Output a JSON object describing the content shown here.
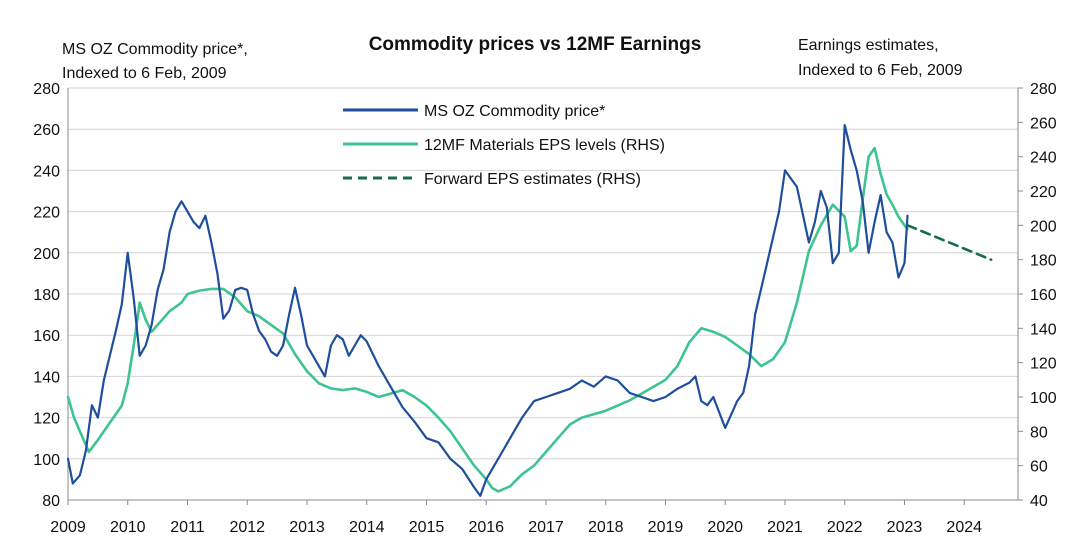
{
  "chart_data": {
    "type": "line",
    "title": "Commodity prices vs 12MF Earnings",
    "left_axis_label": [
      "MS OZ Commodity price*,",
      "Indexed to 6 Feb, 2009"
    ],
    "right_axis_label": [
      "Earnings estimates,",
      "Indexed to 6 Feb, 2009"
    ],
    "x_ticks": [
      "2009",
      "2010",
      "2011",
      "2012",
      "2013",
      "2014",
      "2015",
      "2016",
      "2017",
      "2018",
      "2019",
      "2020",
      "2021",
      "2022",
      "2023",
      "2024"
    ],
    "xlim": [
      2009,
      2024.9
    ],
    "ylim_left": [
      80,
      280
    ],
    "yticks_left": [
      80,
      100,
      120,
      140,
      160,
      180,
      200,
      220,
      240,
      260,
      280
    ],
    "ylim_right": [
      40,
      280
    ],
    "yticks_right": [
      40,
      60,
      80,
      100,
      120,
      140,
      160,
      180,
      200,
      220,
      240,
      260,
      280
    ],
    "legend": {
      "commodity": "MS OZ Commodity price*",
      "eps": "12MF Materials EPS levels (RHS)",
      "forward": "Forward EPS estimates (RHS)"
    },
    "colors": {
      "commodity": "#1f4e9c",
      "eps": "#3ec48f",
      "forward": "#1a6b4c",
      "grid": "#d4d4d4",
      "axis": "#8a8a8a"
    },
    "series": [
      {
        "name": "MS OZ Commodity price*",
        "axis": "left",
        "x": [
          2009.0,
          2009.08,
          2009.2,
          2009.3,
          2009.4,
          2009.5,
          2009.6,
          2009.7,
          2009.8,
          2009.9,
          2010.0,
          2010.1,
          2010.2,
          2010.3,
          2010.4,
          2010.5,
          2010.6,
          2010.7,
          2010.8,
          2010.9,
          2011.0,
          2011.1,
          2011.2,
          2011.3,
          2011.4,
          2011.5,
          2011.6,
          2011.7,
          2011.8,
          2011.9,
          2012.0,
          2012.1,
          2012.2,
          2012.3,
          2012.4,
          2012.5,
          2012.6,
          2012.7,
          2012.8,
          2012.9,
          2013.0,
          2013.1,
          2013.2,
          2013.3,
          2013.4,
          2013.5,
          2013.6,
          2013.7,
          2013.8,
          2013.9,
          2014.0,
          2014.2,
          2014.4,
          2014.6,
          2014.8,
          2015.0,
          2015.2,
          2015.4,
          2015.6,
          2015.8,
          2015.9,
          2016.0,
          2016.1,
          2016.2,
          2016.3,
          2016.4,
          2016.6,
          2016.8,
          2017.0,
          2017.2,
          2017.4,
          2017.6,
          2017.8,
          2018.0,
          2018.2,
          2018.4,
          2018.6,
          2018.8,
          2019.0,
          2019.2,
          2019.4,
          2019.5,
          2019.6,
          2019.7,
          2019.8,
          2020.0,
          2020.2,
          2020.3,
          2020.4,
          2020.5,
          2020.7,
          2020.9,
          2021.0,
          2021.2,
          2021.4,
          2021.5,
          2021.6,
          2021.7,
          2021.8,
          2021.9,
          2022.0,
          2022.1,
          2022.2,
          2022.3,
          2022.4,
          2022.5,
          2022.6,
          2022.7,
          2022.8,
          2022.9,
          2023.0,
          2023.05
        ],
        "y": [
          100,
          88,
          92,
          104,
          126,
          120,
          138,
          150,
          162,
          175,
          200,
          178,
          150,
          155,
          165,
          182,
          192,
          210,
          220,
          225,
          220,
          215,
          212,
          218,
          205,
          190,
          168,
          172,
          182,
          183,
          182,
          170,
          162,
          158,
          152,
          150,
          155,
          170,
          183,
          170,
          155,
          150,
          145,
          140,
          155,
          160,
          158,
          150,
          155,
          160,
          157,
          145,
          135,
          125,
          118,
          110,
          108,
          100,
          95,
          86,
          82,
          90,
          95,
          100,
          105,
          110,
          120,
          128,
          130,
          132,
          134,
          138,
          135,
          140,
          138,
          132,
          130,
          128,
          130,
          134,
          137,
          140,
          128,
          126,
          130,
          115,
          128,
          132,
          145,
          170,
          195,
          220,
          240,
          232,
          205,
          215,
          230,
          222,
          195,
          200,
          262,
          250,
          240,
          225,
          200,
          215,
          228,
          210,
          205,
          188,
          195,
          218
        ]
      },
      {
        "name": "12MF Materials EPS levels (RHS)",
        "axis": "right",
        "x": [
          2009.0,
          2009.1,
          2009.2,
          2009.35,
          2009.5,
          2009.7,
          2009.9,
          2010.0,
          2010.1,
          2010.2,
          2010.3,
          2010.4,
          2010.5,
          2010.7,
          2010.9,
          2011.0,
          2011.2,
          2011.4,
          2011.6,
          2011.8,
          2012.0,
          2012.2,
          2012.4,
          2012.6,
          2012.8,
          2013.0,
          2013.2,
          2013.4,
          2013.6,
          2013.8,
          2014.0,
          2014.2,
          2014.4,
          2014.6,
          2014.8,
          2015.0,
          2015.2,
          2015.4,
          2015.6,
          2015.8,
          2016.0,
          2016.1,
          2016.2,
          2016.4,
          2016.6,
          2016.8,
          2017.0,
          2017.2,
          2017.4,
          2017.6,
          2017.8,
          2018.0,
          2018.2,
          2018.4,
          2018.6,
          2018.8,
          2019.0,
          2019.2,
          2019.4,
          2019.6,
          2019.8,
          2020.0,
          2020.2,
          2020.4,
          2020.6,
          2020.8,
          2021.0,
          2021.2,
          2021.4,
          2021.6,
          2021.8,
          2022.0,
          2022.1,
          2022.2,
          2022.3,
          2022.4,
          2022.5,
          2022.6,
          2022.7,
          2022.8,
          2022.9,
          2023.0,
          2023.05
        ],
        "y": [
          100,
          88,
          80,
          68,
          75,
          85,
          95,
          108,
          130,
          155,
          145,
          138,
          142,
          150,
          155,
          160,
          162,
          163,
          163,
          158,
          150,
          147,
          142,
          137,
          125,
          115,
          108,
          105,
          104,
          105,
          103,
          100,
          102,
          104,
          100,
          95,
          88,
          80,
          70,
          60,
          52,
          47,
          45,
          48,
          55,
          60,
          68,
          76,
          84,
          88,
          90,
          92,
          95,
          98,
          102,
          106,
          110,
          118,
          132,
          140,
          138,
          135,
          130,
          125,
          118,
          122,
          132,
          155,
          185,
          200,
          212,
          205,
          185,
          188,
          215,
          240,
          245,
          230,
          218,
          212,
          205,
          200,
          198
        ]
      },
      {
        "name": "Forward EPS estimates (RHS)",
        "axis": "right",
        "x": [
          2023.05,
          2024.45
        ],
        "y": [
          200,
          180
        ]
      }
    ]
  }
}
